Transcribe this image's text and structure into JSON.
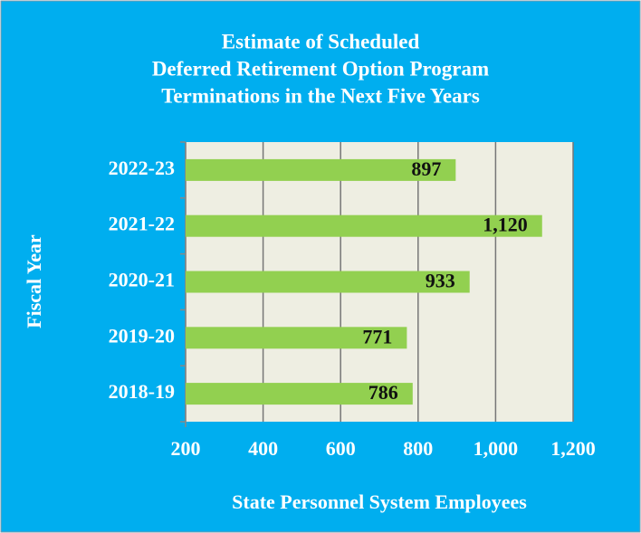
{
  "chart_data": {
    "type": "bar",
    "orientation": "horizontal",
    "title": [
      "Estimate of Scheduled",
      "Deferred Retirement Option Program",
      "Terminations in the Next Five Years"
    ],
    "x_label": "State Personnel System Employees",
    "y_label": "Fiscal Year",
    "categories": [
      "2018-19",
      "2019-20",
      "2020-21",
      "2021-22",
      "2022-23"
    ],
    "values": [
      786,
      771,
      933,
      1120,
      897
    ],
    "value_labels": [
      "786",
      "771",
      "933",
      "1,120",
      "897"
    ],
    "color": "#92d050",
    "xlim": [
      200,
      1200
    ],
    "xticks": [
      200,
      400,
      600,
      800,
      {
        "value": 1000,
        "label": "1,000"
      },
      {
        "value": 1200,
        "label": "1,200"
      }
    ],
    "grid": true
  }
}
